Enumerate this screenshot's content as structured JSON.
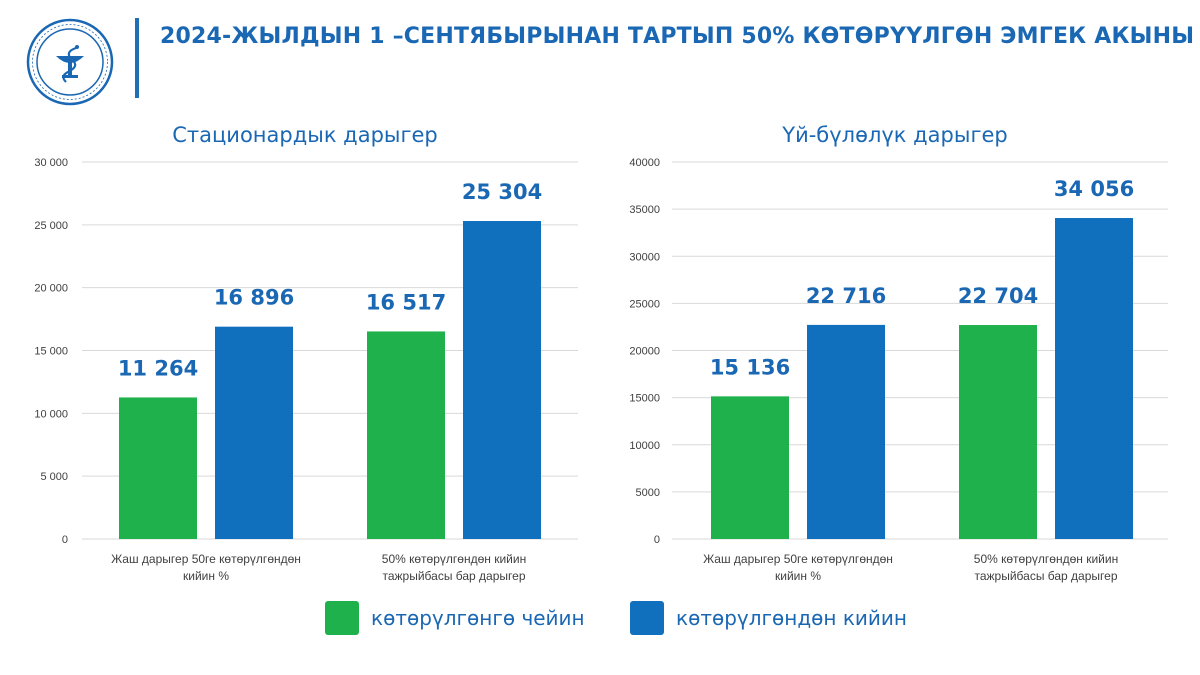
{
  "header": {
    "title": "2024-ЖЫЛДЫН 1 –СЕНТЯБЫРЫНАН ТАРТЫП 50% КӨТӨРҮҮЛГӨН ЭМГЕК АКЫНЫ",
    "logo_icon": "medical-emblem-bowl-snake-icon"
  },
  "colors": {
    "before": "#1fb14b",
    "after": "#1070bd",
    "accent": "#1a67b4"
  },
  "legend": {
    "before_label": "көтөрүлгөнгө чейин",
    "after_label": "көтөрүлгөндөн кийин"
  },
  "chart_data": [
    {
      "type": "bar",
      "title": "Стационардык дарыгер",
      "categories": [
        [
          "Жаш дарыгер 50ге көтөрүлгөндөн",
          "кийин %"
        ],
        [
          "50% көтөрүлгөндөн кийин",
          "тажрыйбасы бар дарыгер"
        ]
      ],
      "series": [
        {
          "name": "көтөрүлгөнгө чейин",
          "values": [
            11264,
            16517
          ],
          "labels": [
            "11 264",
            "16 517"
          ]
        },
        {
          "name": "көтөрүлгөндөн кийин",
          "values": [
            16896,
            25304
          ],
          "labels": [
            "16 896",
            "25 304"
          ]
        }
      ],
      "ylim": [
        0,
        30000
      ],
      "yticks": [
        0,
        5000,
        10000,
        15000,
        20000,
        25000,
        30000
      ],
      "ytick_labels": [
        "0",
        "5 000",
        "10 000",
        "15 000",
        "20 000",
        "25 000",
        "30 000"
      ],
      "grid": true
    },
    {
      "type": "bar",
      "title": "Үй-бүлөлүк дарыгер",
      "categories": [
        [
          "Жаш дарыгер 50ге көтөрүлгөндөн",
          "кийин %"
        ],
        [
          "50% көтөрүлгөндөн кийин",
          "тажрыйбасы бар дарыгер"
        ]
      ],
      "series": [
        {
          "name": "көтөрүлгөнгө чейин",
          "values": [
            15136,
            22704
          ],
          "labels": [
            "15 136",
            "22 704"
          ]
        },
        {
          "name": "көтөрүлгөндөн кийин",
          "values": [
            22716,
            34056
          ],
          "labels": [
            "22 716",
            "34 056"
          ]
        }
      ],
      "ylim": [
        0,
        40000
      ],
      "yticks": [
        0,
        5000,
        10000,
        15000,
        20000,
        25000,
        30000,
        35000,
        40000
      ],
      "ytick_labels": [
        "0",
        "5000",
        "10000",
        "15000",
        "20000",
        "25000",
        "30000",
        "35000",
        "40000"
      ],
      "grid": true
    }
  ]
}
